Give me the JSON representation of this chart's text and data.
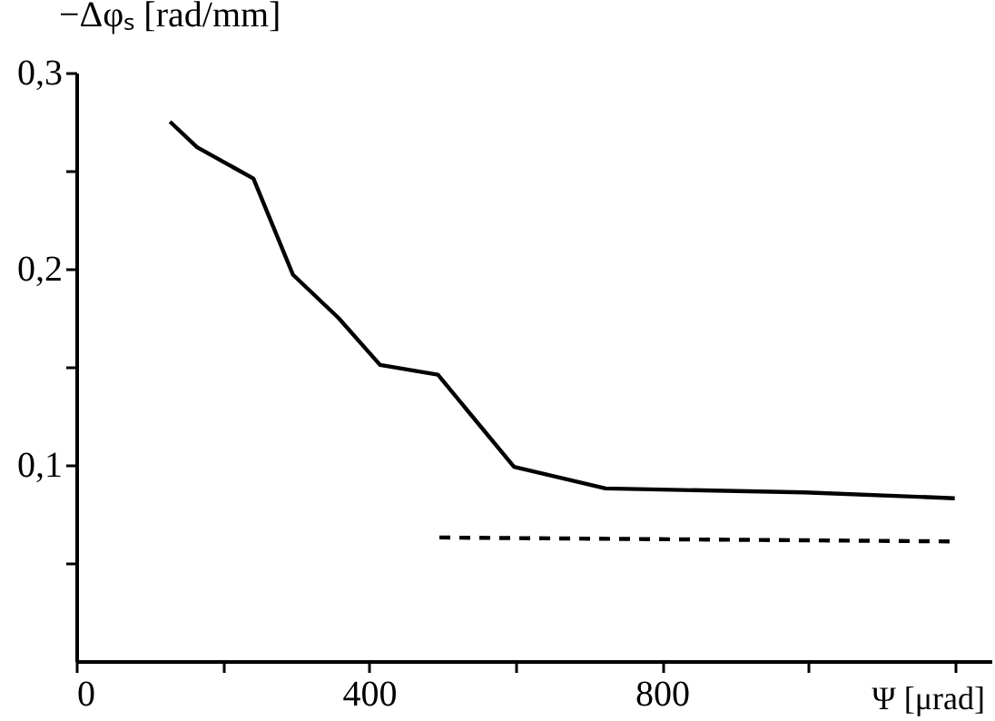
{
  "chart_data": {
    "type": "line",
    "xlabel": "Ψ [μrad]",
    "ylabel": "−Δφₛ [rad/mm]",
    "xlim": [
      0,
      1250
    ],
    "ylim": [
      0,
      0.3
    ],
    "xticks": [
      0,
      {
        "value": 200,
        "label": null
      },
      400,
      {
        "value": 600,
        "label": null
      },
      800,
      {
        "value": 1000,
        "label": null
      },
      {
        "value": 1200,
        "label": null
      }
    ],
    "yticks": [
      {
        "value": 0.05,
        "label": null
      },
      {
        "value": 0.1,
        "label": "0,1"
      },
      {
        "value": 0.15,
        "label": null
      },
      {
        "value": 0.2,
        "label": "0,2"
      },
      {
        "value": 0.25,
        "label": null
      },
      {
        "value": 0.3,
        "label": "0,3"
      }
    ],
    "grid": false,
    "marker": "none",
    "series": [
      {
        "color": "#000000",
        "line_style": "solid",
        "x": [
          128,
          165,
          242,
          296,
          358,
          415,
          494,
          598,
          723,
          995,
          1200
        ],
        "values": [
          0.275,
          0.262,
          0.246,
          0.197,
          0.175,
          0.151,
          0.146,
          0.099,
          0.088,
          0.086,
          0.083
        ]
      },
      {
        "color": "#000000",
        "line_style": "dashed",
        "x": [
          496,
          1193
        ],
        "values": [
          0.063,
          0.061
        ]
      }
    ]
  }
}
